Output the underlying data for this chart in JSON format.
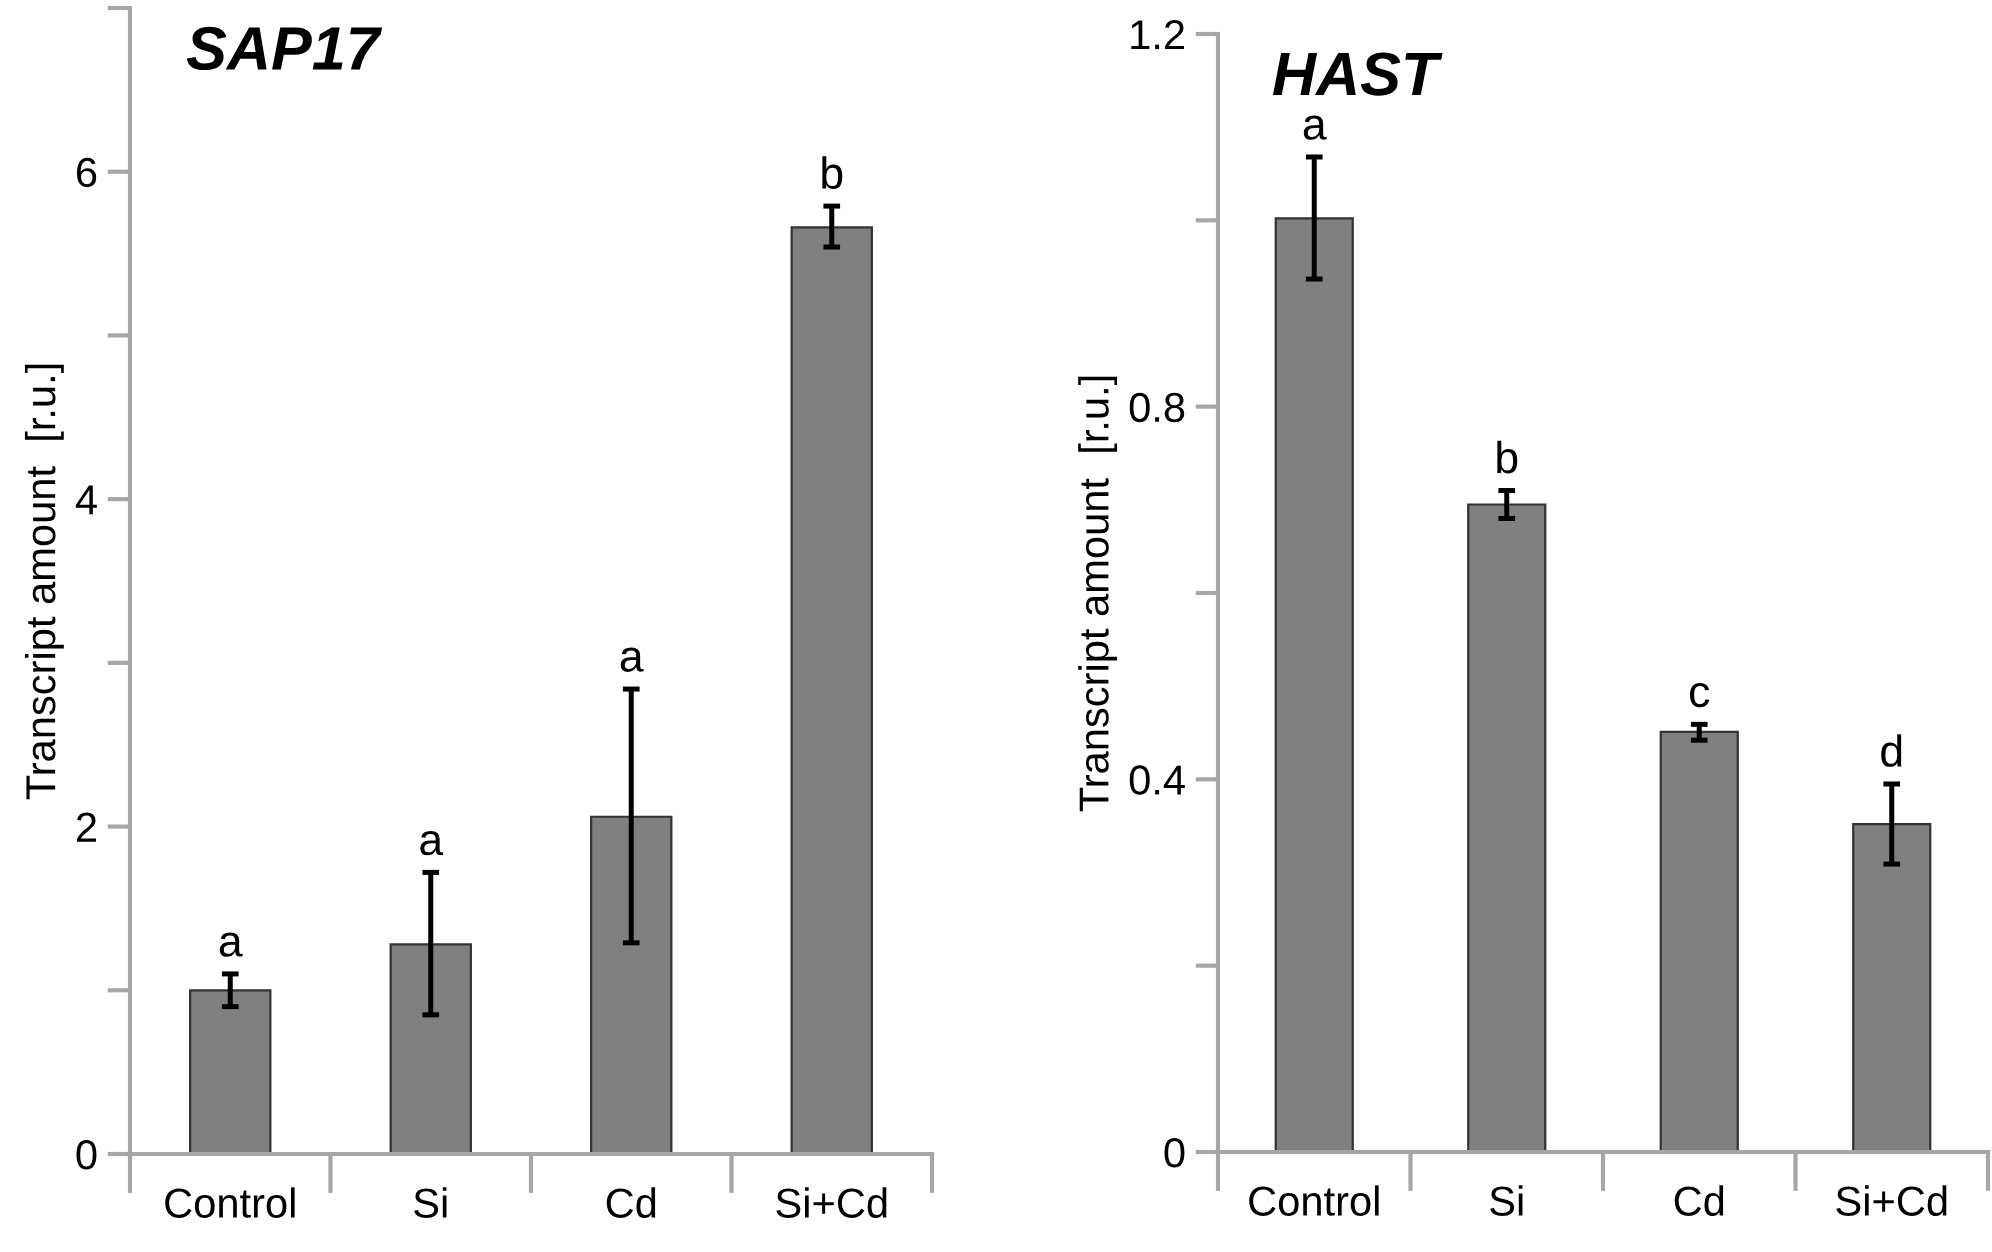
{
  "chart_data": [
    {
      "type": "bar",
      "title": "SAP17",
      "ylabel": "Transcript amount  [r.u.]",
      "categories": [
        "Control",
        "Si",
        "Cd",
        "Si+Cd"
      ],
      "values": [
        1.0,
        1.28,
        2.06,
        5.66
      ],
      "color": "#808080",
      "errors": [
        [
          0.9,
          1.1
        ],
        [
          0.85,
          1.72
        ],
        [
          1.29,
          2.84
        ],
        [
          5.54,
          5.79
        ]
      ],
      "ylim": [
        0,
        7
      ],
      "yticks": [
        0,
        {
          "value": 1,
          "label": null
        },
        2,
        {
          "value": 3,
          "label": null
        },
        4,
        {
          "value": 5,
          "label": null
        },
        6,
        {
          "value": 7,
          "label": null
        }
      ],
      "grid": false,
      "annotations": [
        "a",
        "a",
        "a",
        "b"
      ]
    },
    {
      "type": "bar",
      "title": "HAST",
      "ylabel": "Transcript amount  [r.u.]",
      "categories": [
        "Control",
        "Si",
        "Cd",
        "Si+Cd"
      ],
      "values": [
        1.002,
        0.695,
        0.451,
        0.352
      ],
      "color": "#808080",
      "errors": [
        [
          0.937,
          1.068
        ],
        [
          0.68,
          0.71
        ],
        [
          0.442,
          0.459
        ],
        [
          0.309,
          0.395
        ]
      ],
      "ylim": [
        0,
        1.2
      ],
      "yticks": [
        0,
        {
          "value": 0.2,
          "label": null
        },
        0.4,
        {
          "value": 0.6,
          "label": null
        },
        0.8,
        {
          "value": 1.0,
          "label": null
        },
        1.2
      ],
      "grid": false,
      "annotations": [
        "a",
        "b",
        "c",
        "d"
      ]
    }
  ]
}
